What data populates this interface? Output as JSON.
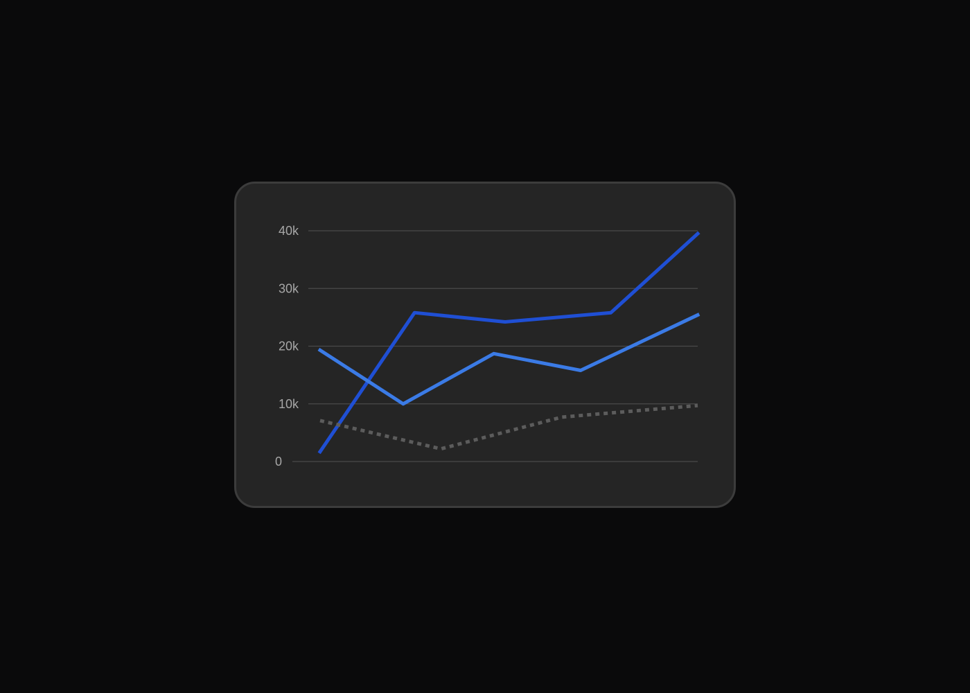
{
  "chart_data": {
    "type": "line",
    "title": "",
    "xlabel": "",
    "ylabel": "",
    "ylim": [
      0,
      40000
    ],
    "yticks": [
      {
        "value": 0,
        "label": "0"
      },
      {
        "value": 10000,
        "label": "10k"
      },
      {
        "value": 20000,
        "label": "20k"
      },
      {
        "value": 30000,
        "label": "30k"
      },
      {
        "value": 40000,
        "label": "40k"
      }
    ],
    "grid": true,
    "legend": "none",
    "series": [
      {
        "color": "#1f4fd4",
        "style": "solid",
        "points": [
          {
            "x": 0.0,
            "y": 1700
          },
          {
            "x": 0.25,
            "y": 25800
          },
          {
            "x": 0.49,
            "y": 24200
          },
          {
            "x": 0.77,
            "y": 25800
          },
          {
            "x": 1.0,
            "y": 39500
          }
        ]
      },
      {
        "color": "#3b7be6",
        "style": "solid",
        "points": [
          {
            "x": 0.0,
            "y": 19300
          },
          {
            "x": 0.22,
            "y": 10000
          },
          {
            "x": 0.46,
            "y": 18700
          },
          {
            "x": 0.69,
            "y": 15800
          },
          {
            "x": 1.0,
            "y": 25400
          }
        ]
      },
      {
        "color": "#5c5c5c",
        "style": "dotted",
        "points": [
          {
            "x": 0.0,
            "y": 7100
          },
          {
            "x": 0.32,
            "y": 2200
          },
          {
            "x": 0.64,
            "y": 7700
          },
          {
            "x": 1.0,
            "y": 9700
          }
        ]
      }
    ]
  }
}
